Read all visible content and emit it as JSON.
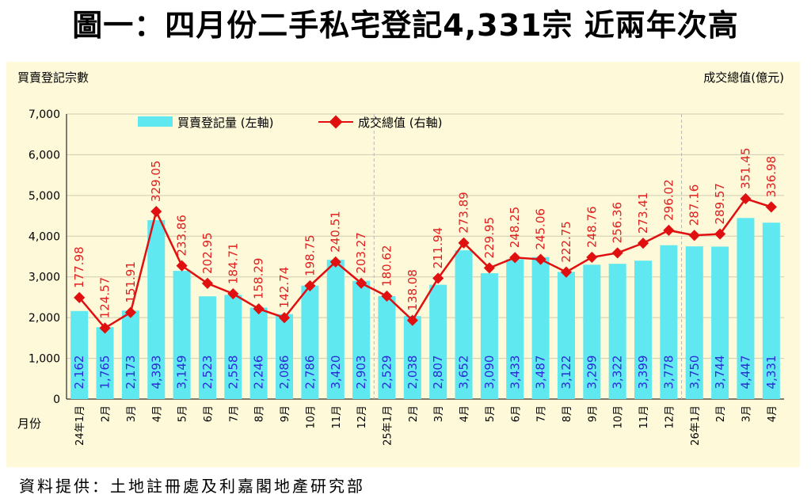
{
  "title": "圖一：四月份二手私宅登記4,331宗  近兩年次高",
  "source": "資料提供：土地註冊處及利嘉閣地產研究部",
  "chart_data": {
    "type": "bar+line",
    "y_left_title": "買賣登記宗數",
    "y_right_title": "成交總值(億元)",
    "x_title": "月份",
    "ylim_left": [
      0,
      7000
    ],
    "y_ticks_left": [
      "0",
      "1,000",
      "2,000",
      "3,000",
      "4,000",
      "5,000",
      "6,000",
      "7,000"
    ],
    "categories": [
      "24年1月",
      "2月",
      "3月",
      "4月",
      "5月",
      "6月",
      "7月",
      "8月",
      "9月",
      "10月",
      "11月",
      "12月",
      "25年1月",
      "2月",
      "3月",
      "4月",
      "5月",
      "6月",
      "7月",
      "8月",
      "9月",
      "10月",
      "11月",
      "12月",
      "26年1月",
      "2月",
      "3月",
      "4月"
    ],
    "series": [
      {
        "name": "買賣登記量 (左軸)",
        "type": "bar",
        "axis": "left",
        "color": "#5fe8f0",
        "values": [
          2162,
          1765,
          2173,
          4393,
          3149,
          2523,
          2558,
          2246,
          2086,
          2786,
          3420,
          2903,
          2529,
          2038,
          2807,
          3652,
          3090,
          3433,
          3487,
          3122,
          3299,
          3322,
          3399,
          3778,
          3750,
          3744,
          4447,
          4331
        ],
        "labels": [
          "2,162",
          "1,765",
          "2,173",
          "4,393",
          "3,149",
          "2,523",
          "2,558",
          "2,246",
          "2,086",
          "2,786",
          "3,420",
          "2,903",
          "2,529",
          "2,038",
          "2,807",
          "3,652",
          "3,090",
          "3,433",
          "3,487",
          "3,122",
          "3,299",
          "3,322",
          "3,399",
          "3,778",
          "3,750",
          "3,744",
          "4,447",
          "4,331"
        ]
      },
      {
        "name": "成交總值 (右軸)",
        "type": "line",
        "axis": "right",
        "color": "#e01010",
        "values": [
          177.98,
          124.57,
          151.91,
          329.05,
          233.86,
          202.95,
          184.71,
          158.29,
          142.74,
          198.75,
          240.51,
          203.27,
          180.62,
          138.08,
          211.94,
          273.89,
          229.95,
          248.25,
          245.06,
          222.75,
          248.76,
          256.36,
          273.41,
          296.02,
          287.16,
          289.57,
          351.45,
          336.98
        ],
        "labels": [
          "177.98",
          "124.57",
          "151.91",
          "329.05",
          "233.86",
          "202.95",
          "184.71",
          "158.29",
          "142.74",
          "198.75",
          "240.51",
          "203.27",
          "180.62",
          "138.08",
          "211.94",
          "273.89",
          "229.95",
          "248.25",
          "245.06",
          "222.75",
          "248.76",
          "256.36",
          "273.41",
          "296.02",
          "287.16",
          "289.57",
          "351.45",
          "336.98"
        ]
      }
    ],
    "year_dividers_after": [
      11,
      23
    ]
  }
}
